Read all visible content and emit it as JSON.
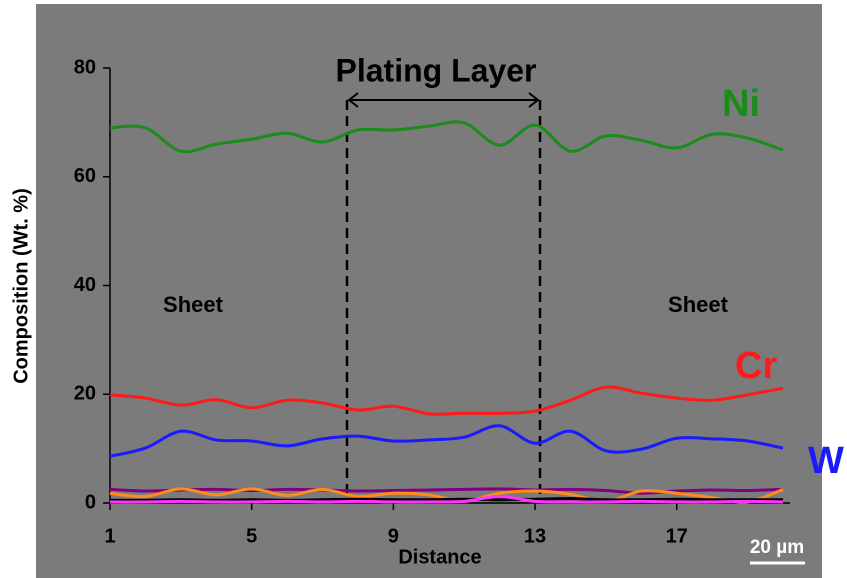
{
  "chart_data": {
    "type": "line",
    "title": "Plating Layer",
    "x_label": "Distance",
    "y_label": "Composition (Wt. %)",
    "annotations": [
      "Sheet",
      "Sheet"
    ],
    "scale_bar": "20 µm",
    "x": [
      1,
      2,
      3,
      4,
      5,
      6,
      7,
      8,
      9,
      10,
      11,
      12,
      13,
      14,
      15,
      16,
      17,
      18,
      19,
      20
    ],
    "xlim": [
      1,
      20
    ],
    "xticks": [
      1,
      5,
      9,
      13,
      17
    ],
    "ylim": [
      0,
      80
    ],
    "yticks": [
      0,
      20,
      40,
      60,
      80
    ],
    "series": [
      {
        "name": "Ni",
        "color": "#1a8c1a",
        "values": [
          69,
          69,
          64.7,
          66,
          66.9,
          68,
          66.4,
          68.6,
          68.6,
          69.3,
          69.9,
          65.8,
          69.5,
          64.7,
          67.5,
          66.7,
          65.3,
          67.8,
          67.1,
          64.9
        ]
      },
      {
        "name": "Cr",
        "color": "#ff1a1a",
        "values": [
          19.9,
          19.3,
          18,
          19,
          17.5,
          18.9,
          18.4,
          17.1,
          17.8,
          16.4,
          16.5,
          16.5,
          16.9,
          18.9,
          21.3,
          20.2,
          19.3,
          18.9,
          19.9,
          21.1
        ]
      },
      {
        "name": "W",
        "color": "#1a1aff",
        "values": [
          8.6,
          10.1,
          13.2,
          11.6,
          11.4,
          10.5,
          11.8,
          12.3,
          11.4,
          11.6,
          12.1,
          14.2,
          11,
          13.2,
          9.6,
          9.9,
          11.9,
          11.8,
          11.4,
          10.1
        ]
      },
      {
        "color": "#800080",
        "values": [
          2.5,
          2.2,
          2.4,
          2.5,
          2.3,
          2.5,
          2.4,
          2.2,
          2.3,
          2.4,
          2.5,
          2.6,
          2.4,
          2.5,
          2.3,
          1.8,
          2.2,
          2.4,
          2.3,
          2.5
        ]
      },
      {
        "color": "#ff8c1a",
        "values": [
          1.8,
          1.2,
          2.6,
          1.5,
          2.6,
          1.4,
          2.5,
          1.2,
          1.8,
          1.5,
          0.3,
          1.8,
          2.2,
          1.6,
          0.3,
          2.2,
          1.8,
          1,
          0.2,
          2.5
        ]
      },
      {
        "color": "#000000",
        "values": [
          0.5,
          0.5,
          0.6,
          0.5,
          0.6,
          0.5,
          0.6,
          0.7,
          0.6,
          0.6,
          0.7,
          0.6,
          0.7,
          0.8,
          0.6,
          0.6,
          0.7,
          0.6,
          0.6,
          0.6
        ]
      },
      {
        "color": "#ff33ff",
        "values": [
          0.2,
          0.2,
          0.3,
          0.2,
          0.2,
          0.3,
          0.2,
          0.3,
          0.2,
          0.2,
          0.3,
          1.2,
          0.3,
          0.2,
          0.2,
          0.3,
          0.2,
          0.2,
          0.3,
          0.2
        ]
      }
    ]
  }
}
